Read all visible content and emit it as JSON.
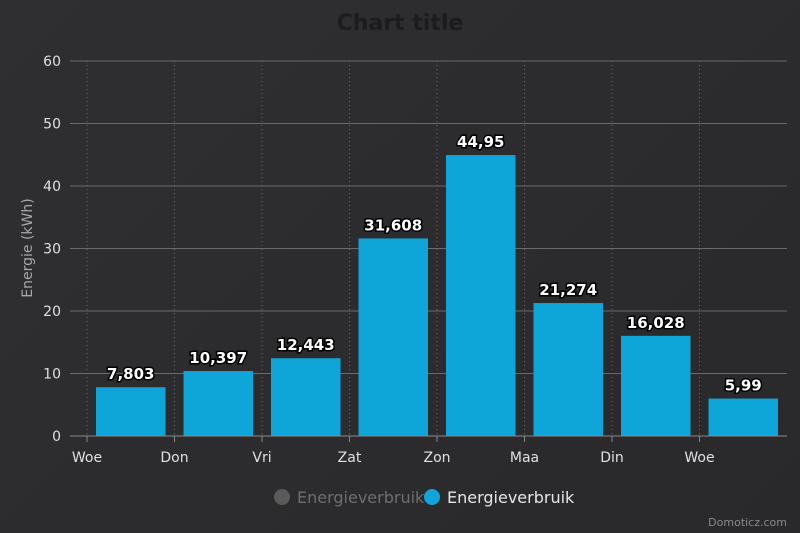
{
  "chart_data": {
    "type": "bar",
    "title": "Chart title",
    "ylabel": "Energie (kWh)",
    "ylim": [
      0,
      60
    ],
    "yticks": [
      0,
      10,
      20,
      30,
      40,
      50,
      60
    ],
    "categories": [
      "Woe",
      "Don",
      "Vri",
      "Zat",
      "Zon",
      "Maa",
      "Din",
      "Woe"
    ],
    "series": [
      {
        "name": "Energieverbruik",
        "values": [
          7.803,
          10.397,
          12.443,
          31.608,
          44.95,
          21.274,
          16.028,
          5.99
        ],
        "data_labels": [
          "7,803",
          "10,397",
          "12,443",
          "31,608",
          "44,95",
          "21,274",
          "16,028",
          "5,99"
        ],
        "color": "#0ea5d8"
      }
    ],
    "legend": [
      {
        "label": "Energieverbruik",
        "color": "#5a5a5a",
        "visible": false
      },
      {
        "label": "Energieverbruik",
        "color": "#0ea5d8",
        "visible": true
      }
    ],
    "legend_position": "bottom-center",
    "grid": true
  },
  "credit": "Domoticz.com",
  "colors": {
    "bar": "#0ea5d8",
    "grid": "#6a6a6a",
    "legend_hidden": "#5a5a5a",
    "legend_hidden_text": "#6e6e6e",
    "legend_active_text": "#e6e6e6"
  }
}
